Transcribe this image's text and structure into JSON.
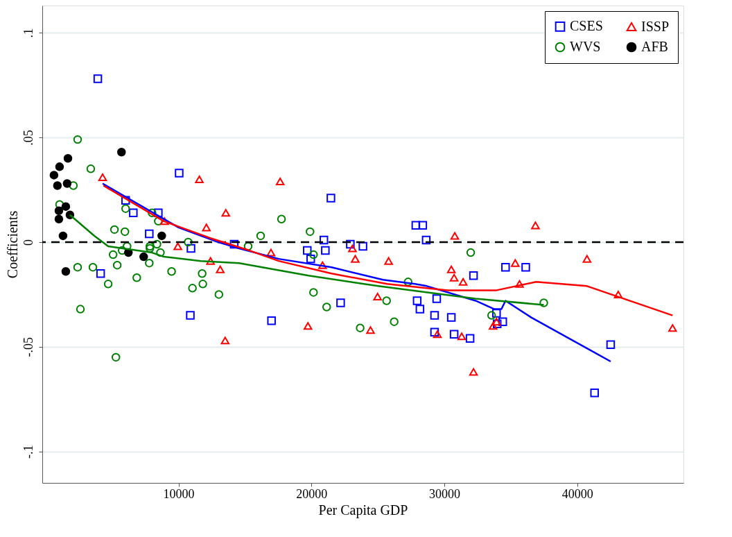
{
  "chart_data": {
    "type": "scatter",
    "xlabel": "Per Capita GDP",
    "ylabel": "Coefficients",
    "xlim": [
      -250,
      48000
    ],
    "ylim": [
      -0.115,
      0.113
    ],
    "xticks": [
      10000,
      20000,
      30000,
      40000
    ],
    "yticks": [
      {
        "value": -0.1,
        "label": "-.1"
      },
      {
        "value": -0.05,
        "label": "-.05"
      },
      {
        "value": 0,
        "label": "0"
      },
      {
        "value": 0.05,
        "label": ".05"
      },
      {
        "value": 0.1,
        "label": ".1"
      }
    ],
    "grid": "y",
    "legend": "top right",
    "ref_lines": [
      {
        "axis": "y",
        "value": 0,
        "color": "#000000",
        "line_style": "dashed"
      }
    ],
    "series": [
      {
        "name": "CSES",
        "marker": "square",
        "color": "#0000ff",
        "x": [
          3927,
          10050,
          6020,
          6600,
          8480,
          7800,
          10940,
          14190,
          4140,
          10890,
          17000,
          21470,
          20940,
          19690,
          21050,
          19950,
          22930,
          23880,
          22200,
          27860,
          28380,
          28640,
          27960,
          28170,
          29430,
          29270,
          30530,
          29270,
          30740,
          31940,
          32200,
          34610,
          36130,
          33930,
          34400,
          33980,
          42520,
          41310
        ],
        "values": [
          0.078,
          0.033,
          0.02,
          0.014,
          0.014,
          0.004,
          -0.003,
          -0.001,
          -0.015,
          -0.035,
          -0.0375,
          0.021,
          0.001,
          -0.004,
          -0.004,
          -0.008,
          -0.001,
          -0.002,
          -0.029,
          0.008,
          0.008,
          0.001,
          -0.028,
          -0.032,
          -0.027,
          -0.035,
          -0.036,
          -0.043,
          -0.044,
          -0.046,
          -0.016,
          -0.012,
          -0.012,
          -0.034,
          -0.038,
          -0.039,
          -0.049,
          -0.072
        ]
      },
      {
        "name": "WVS",
        "marker": "circle",
        "color": "#008000",
        "x": [
          2410,
          3400,
          2090,
          1050,
          6020,
          8010,
          8480,
          5180,
          5970,
          6130,
          7850,
          8380,
          7850,
          10730,
          5760,
          8640,
          5080,
          7800,
          2410,
          3560,
          5390,
          9480,
          11780,
          4710,
          6860,
          11050,
          11830,
          13040,
          15240,
          2620,
          5290,
          16180,
          17750,
          19900,
          20160,
          20160,
          21150,
          27280,
          25660,
          26230,
          23670,
          31990,
          33560,
          37490
        ],
        "values": [
          0.049,
          0.035,
          0.027,
          0.018,
          0.016,
          0.014,
          0.01,
          0.006,
          0.005,
          -0.002,
          -0.002,
          -0.001,
          -0.003,
          0.0,
          -0.004,
          -0.005,
          -0.006,
          -0.01,
          -0.012,
          -0.012,
          -0.011,
          -0.014,
          -0.015,
          -0.02,
          -0.017,
          -0.022,
          -0.02,
          -0.025,
          -0.002,
          -0.032,
          -0.055,
          0.003,
          0.011,
          0.005,
          -0.006,
          -0.024,
          -0.031,
          -0.019,
          -0.028,
          -0.038,
          -0.041,
          -0.005,
          -0.035,
          -0.029
        ]
      },
      {
        "name": "ISSP",
        "marker": "triangle",
        "color": "#ff0000",
        "x": [
          4290,
          11570,
          13560,
          12100,
          8950,
          9950,
          12410,
          13140,
          13510,
          17650,
          16960,
          19740,
          20840,
          23090,
          23300,
          25810,
          24980,
          24450,
          30790,
          30530,
          30740,
          31420,
          29480,
          31310,
          32200,
          36860,
          40740,
          35340,
          35660,
          43090,
          47180,
          33670,
          33930
        ],
        "values": [
          0.031,
          0.03,
          0.014,
          0.007,
          0.01,
          -0.002,
          -0.009,
          -0.013,
          -0.047,
          0.029,
          -0.005,
          -0.04,
          -0.011,
          -0.003,
          -0.008,
          -0.009,
          -0.026,
          -0.042,
          0.003,
          -0.013,
          -0.017,
          -0.019,
          -0.044,
          -0.045,
          -0.062,
          0.008,
          -0.008,
          -0.01,
          -0.02,
          -0.025,
          -0.041,
          -0.04,
          -0.038
        ]
      },
      {
        "name": "AFB",
        "marker": "circle",
        "color": "#000000",
        "x": [
          5710,
          1680,
          1050,
          630,
          890,
          1620,
          1520,
          1000,
          1830,
          1000,
          1310,
          8740,
          6230,
          7380,
          1520
        ],
        "values": [
          0.043,
          0.04,
          0.036,
          0.032,
          0.027,
          0.028,
          0.017,
          0.015,
          0.013,
          0.011,
          0.003,
          0.003,
          -0.005,
          -0.007,
          -0.014
        ]
      },
      {
        "type": "line",
        "color": "#0000ff",
        "x": [
          4290,
          10000,
          13000,
          14560,
          17540,
          21520,
          25390,
          27800,
          28690,
          32360,
          33770,
          34300,
          34610,
          36550,
          42520
        ],
        "values": [
          0.028,
          0.007,
          0.0,
          -0.003,
          -0.008,
          -0.012,
          -0.018,
          -0.02,
          -0.021,
          -0.028,
          -0.032,
          -0.032,
          -0.028,
          -0.036,
          -0.057
        ]
      },
      {
        "type": "line",
        "color": "#ff0000",
        "x": [
          4350,
          8900,
          12360,
          15340,
          17540,
          21520,
          25710,
          30260,
          33930,
          36910,
          40740,
          47180
        ],
        "values": [
          0.027,
          0.01,
          0.002,
          -0.004,
          -0.009,
          -0.015,
          -0.02,
          -0.023,
          -0.023,
          -0.019,
          -0.021,
          -0.035
        ]
      },
      {
        "type": "line",
        "color": "#008000",
        "x": [
          1830,
          3670,
          4710,
          8010,
          8900,
          11680,
          14560,
          19790,
          25030,
          32360,
          37490
        ],
        "values": [
          0.013,
          0.003,
          -0.002,
          -0.005,
          -0.007,
          -0.009,
          -0.01,
          -0.016,
          -0.021,
          -0.027,
          -0.03
        ]
      }
    ]
  }
}
